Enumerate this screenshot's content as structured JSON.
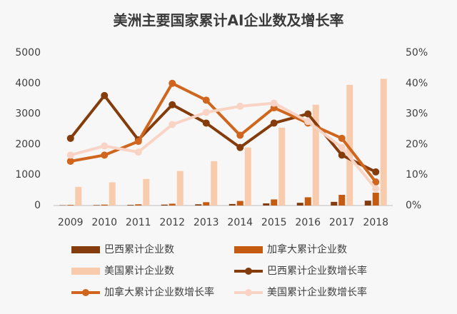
{
  "chart_data": {
    "type": "combo",
    "title": "美洲主要国家累计AI企业数及增长率",
    "categories": [
      "2009",
      "2010",
      "2011",
      "2012",
      "2013",
      "2014",
      "2015",
      "2016",
      "2017",
      "2018"
    ],
    "ylim": [
      0,
      5000
    ],
    "yticks": [
      0,
      1000,
      2000,
      3000,
      4000,
      5000
    ],
    "y2lim": [
      0,
      50
    ],
    "y2ticks": [
      {
        "value": 0,
        "label": "0%"
      },
      {
        "value": 10,
        "label": "10%"
      },
      {
        "value": 20,
        "label": "20%"
      },
      {
        "value": 30,
        "label": "30%"
      },
      {
        "value": 40,
        "label": "40%"
      },
      {
        "value": 50,
        "label": "50%"
      }
    ],
    "series": [
      {
        "name": "巴西累计企业数",
        "type": "bar",
        "color": "#843c0c",
        "values": [
          10,
          15,
          20,
          30,
          40,
          50,
          70,
          90,
          120,
          160
        ]
      },
      {
        "name": "加拿大累计企业数",
        "type": "bar",
        "color": "#c55a11",
        "values": [
          20,
          30,
          40,
          60,
          110,
          150,
          200,
          270,
          350,
          420
        ]
      },
      {
        "name": "美国累计企业数",
        "type": "bar",
        "color": "#f8cbad",
        "values": [
          610,
          760,
          870,
          1130,
          1450,
          1900,
          2550,
          3300,
          3950,
          4150
        ]
      },
      {
        "name": "巴西累计企业数增长率",
        "type": "line",
        "axis": "y2",
        "color": "#843c0c",
        "values": [
          22,
          36,
          21.5,
          33,
          27,
          19,
          27,
          30,
          16.5,
          11
        ]
      },
      {
        "name": "加拿大累计企业数增长率",
        "type": "line",
        "axis": "y2",
        "color": "#d0661d",
        "values": [
          14.5,
          16.5,
          21,
          40,
          34.5,
          23,
          32,
          27,
          22,
          7.7
        ]
      },
      {
        "name": "美国累计企业数增长率",
        "type": "line",
        "axis": "y2",
        "color": "#f9d3c4",
        "values": [
          16.5,
          19.5,
          17.5,
          26.5,
          30.5,
          32.5,
          33.5,
          27.5,
          19,
          5.5
        ]
      }
    ]
  }
}
